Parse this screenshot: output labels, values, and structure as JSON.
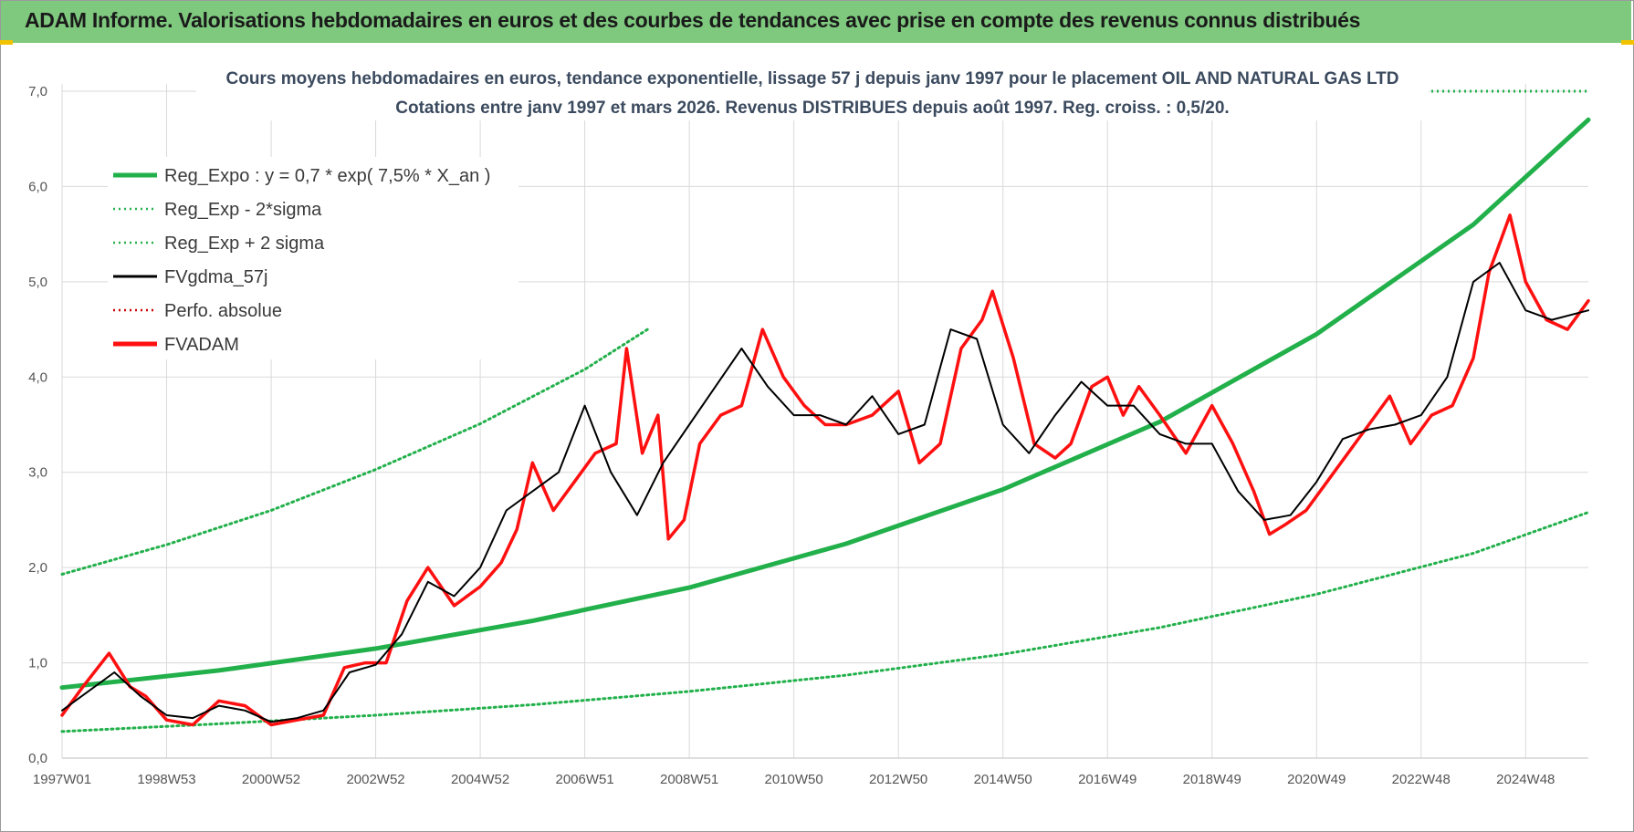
{
  "banner": {
    "title": "ADAM Informe. Valorisations hebdomadaires en euros et des courbes de tendances avec prise en compte des revenus connus distribués"
  },
  "colors": {
    "banner_bg": "#7fc97f",
    "reg_expo": "#22b04b",
    "fvgdma": "#000000",
    "fvadam": "#ff1010",
    "perfo": "#cc0000",
    "grid": "#d9d9d9"
  },
  "chart_data": {
    "type": "line",
    "title_line1": "Cours moyens hebdomadaires en euros, tendance exponentielle, lissage 57 j depuis janv 1997 pour le placement OIL AND NATURAL GAS LTD",
    "title_line2": "Cotations entre janv 1997 et mars 2026. Revenus DISTRIBUES depuis août 1997. Reg. croiss. : 0,5/20.",
    "x_range": [
      1997.0,
      2026.2
    ],
    "ylim": [
      0,
      7
    ],
    "y_ticks": [
      "0,0",
      "1,0",
      "2,0",
      "3,0",
      "4,0",
      "5,0",
      "6,0",
      "7,0"
    ],
    "x_ticks": [
      {
        "label": "1997W01",
        "year": 1997.0
      },
      {
        "label": "1998W53",
        "year": 1999.0
      },
      {
        "label": "2000W52",
        "year": 2001.0
      },
      {
        "label": "2002W52",
        "year": 2003.0
      },
      {
        "label": "2004W52",
        "year": 2005.0
      },
      {
        "label": "2006W51",
        "year": 2007.0
      },
      {
        "label": "2008W51",
        "year": 2009.0
      },
      {
        "label": "2010W50",
        "year": 2011.0
      },
      {
        "label": "2012W50",
        "year": 2013.0
      },
      {
        "label": "2014W50",
        "year": 2015.0
      },
      {
        "label": "2016W49",
        "year": 2017.0
      },
      {
        "label": "2018W49",
        "year": 2019.0
      },
      {
        "label": "2020W49",
        "year": 2021.0
      },
      {
        "label": "2022W48",
        "year": 2023.0
      },
      {
        "label": "2024W48",
        "year": 2025.0
      }
    ],
    "legend": [
      {
        "label": "Reg_Expo : y = 0,7 * exp( 7,5% *  X_an )",
        "style": "solid-thick",
        "color": "#22b04b"
      },
      {
        "label": "Reg_Exp - 2*sigma",
        "style": "dotted",
        "color": "#22b04b"
      },
      {
        "label": "Reg_Exp + 2 sigma",
        "style": "dotted",
        "color": "#22b04b"
      },
      {
        "label": "FVgdma_57j",
        "style": "solid",
        "color": "#000000"
      },
      {
        "label": "Perfo. absolue",
        "style": "dotted",
        "color": "#cc0000"
      },
      {
        "label": "FVADAM",
        "style": "solid-thick",
        "color": "#ff1010"
      }
    ],
    "series": [
      {
        "name": "Reg_Expo",
        "x": [
          1997.0,
          2000.0,
          2003.0,
          2006.0,
          2009.0,
          2012.0,
          2015.0,
          2018.0,
          2021.0,
          2024.0,
          2026.2
        ],
        "values": [
          0.74,
          0.92,
          1.15,
          1.44,
          1.79,
          2.25,
          2.82,
          3.53,
          4.45,
          5.6,
          6.7
        ]
      },
      {
        "name": "Reg_Exp - 2*sigma",
        "x": [
          1997.0,
          2000.0,
          2003.0,
          2006.0,
          2009.0,
          2012.0,
          2015.0,
          2018.0,
          2021.0,
          2024.0,
          2026.2
        ],
        "values": [
          0.28,
          0.36,
          0.45,
          0.56,
          0.7,
          0.87,
          1.09,
          1.37,
          1.72,
          2.15,
          2.58
        ]
      },
      {
        "name": "Reg_Exp + 2 sigma",
        "x": [
          1997.0,
          1999.0,
          2001.0,
          2003.0,
          2005.0,
          2007.0,
          2008.2
        ],
        "values": [
          1.93,
          2.24,
          2.6,
          3.03,
          3.51,
          4.08,
          4.5
        ]
      },
      {
        "name": "FVADAM",
        "x": [
          1997.0,
          1997.4,
          1997.9,
          1998.3,
          1998.6,
          1999.0,
          1999.5,
          2000.0,
          2000.5,
          2001.0,
          2001.5,
          2002.0,
          2002.4,
          2002.8,
          2003.2,
          2003.6,
          2004.0,
          2004.5,
          2005.0,
          2005.4,
          2005.7,
          2006.0,
          2006.4,
          2006.8,
          2007.2,
          2007.6,
          2007.8,
          2008.1,
          2008.4,
          2008.6,
          2008.9,
          2009.2,
          2009.6,
          2010.0,
          2010.4,
          2010.8,
          2011.2,
          2011.6,
          2012.0,
          2012.5,
          2013.0,
          2013.4,
          2013.8,
          2014.2,
          2014.6,
          2014.8,
          2015.2,
          2015.6,
          2016.0,
          2016.3,
          2016.7,
          2017.0,
          2017.3,
          2017.6,
          2018.0,
          2018.5,
          2019.0,
          2019.4,
          2019.8,
          2020.1,
          2020.4,
          2020.8,
          2021.2,
          2021.6,
          2022.0,
          2022.4,
          2022.8,
          2023.2,
          2023.6,
          2024.0,
          2024.3,
          2024.5,
          2024.7,
          2025.0,
          2025.4,
          2025.8,
          2026.2
        ],
        "values": [
          0.45,
          0.75,
          1.1,
          0.75,
          0.65,
          0.4,
          0.35,
          0.6,
          0.55,
          0.35,
          0.4,
          0.45,
          0.95,
          1.0,
          1.0,
          1.65,
          2.0,
          1.6,
          1.8,
          2.05,
          2.4,
          3.1,
          2.6,
          2.9,
          3.2,
          3.3,
          4.3,
          3.2,
          3.6,
          2.3,
          2.5,
          3.3,
          3.6,
          3.7,
          4.5,
          4.0,
          3.7,
          3.5,
          3.5,
          3.6,
          3.85,
          3.1,
          3.3,
          4.3,
          4.6,
          4.9,
          4.2,
          3.3,
          3.15,
          3.3,
          3.9,
          4.0,
          3.6,
          3.9,
          3.6,
          3.2,
          3.7,
          3.3,
          2.8,
          2.35,
          2.45,
          2.6,
          2.9,
          3.2,
          3.5,
          3.8,
          3.3,
          3.6,
          3.7,
          4.2,
          5.1,
          5.4,
          5.7,
          5.0,
          4.6,
          4.5,
          4.8
        ]
      },
      {
        "name": "FVgdma_57j",
        "x": [
          1997.0,
          1997.5,
          1998.0,
          1998.5,
          1999.0,
          1999.5,
          2000.0,
          2000.5,
          2001.0,
          2001.5,
          2002.0,
          2002.5,
          2003.0,
          2003.5,
          2004.0,
          2004.5,
          2005.0,
          2005.5,
          2006.0,
          2006.5,
          2007.0,
          2007.5,
          2008.0,
          2008.5,
          2009.0,
          2009.5,
          2010.0,
          2010.5,
          2011.0,
          2011.5,
          2012.0,
          2012.5,
          2013.0,
          2013.5,
          2014.0,
          2014.5,
          2015.0,
          2015.5,
          2016.0,
          2016.5,
          2017.0,
          2017.5,
          2018.0,
          2018.5,
          2019.0,
          2019.5,
          2020.0,
          2020.5,
          2021.0,
          2021.5,
          2022.0,
          2022.5,
          2023.0,
          2023.5,
          2024.0,
          2024.5,
          2025.0,
          2025.5,
          2026.2
        ],
        "values": [
          0.5,
          0.7,
          0.9,
          0.65,
          0.45,
          0.42,
          0.55,
          0.5,
          0.38,
          0.42,
          0.5,
          0.9,
          0.98,
          1.3,
          1.85,
          1.7,
          2.0,
          2.6,
          2.8,
          3.0,
          3.7,
          3.0,
          2.55,
          3.1,
          3.5,
          3.9,
          4.3,
          3.9,
          3.6,
          3.6,
          3.5,
          3.8,
          3.4,
          3.5,
          4.5,
          4.4,
          3.5,
          3.2,
          3.6,
          3.95,
          3.7,
          3.7,
          3.4,
          3.3,
          3.3,
          2.8,
          2.5,
          2.55,
          2.9,
          3.35,
          3.45,
          3.5,
          3.6,
          4.0,
          5.0,
          5.2,
          4.7,
          4.6,
          4.7
        ]
      }
    ]
  }
}
